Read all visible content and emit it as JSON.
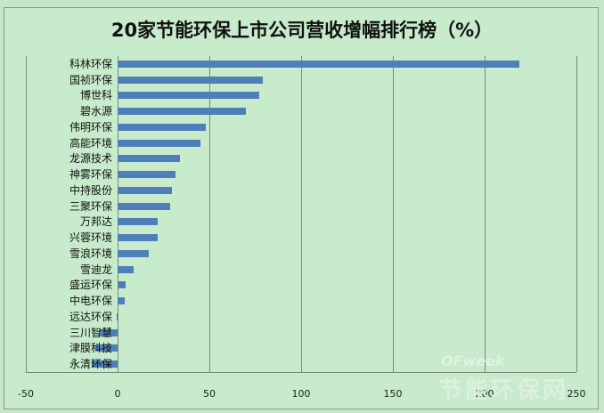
{
  "title": "20家节能环保上市公司营收增幅排行榜（%）",
  "watermark": {
    "brand": "OFweek",
    "site": "节能环保网"
  },
  "chart_data": {
    "type": "bar",
    "orientation": "horizontal",
    "title": "20家节能环保上市公司营收增幅排行榜（%）",
    "xlabel": "",
    "ylabel": "",
    "xlim": [
      -50,
      250
    ],
    "xticks": [
      -50,
      0,
      50,
      100,
      150,
      200,
      250
    ],
    "grid": true,
    "legend": null,
    "bar_color": "#4f7fba",
    "categories": [
      "科林环保",
      "国祯环保",
      "博世科",
      "碧水源",
      "伟明环保",
      "高能环境",
      "龙源技术",
      "神雾环保",
      "中持股份",
      "三聚环保",
      "万邦达",
      "兴蓉环境",
      "雪浪环境",
      "雪迪龙",
      "盛运环保",
      "中电环保",
      "远达环保",
      "三川智慧",
      "津膜科技",
      "永清环保"
    ],
    "values": [
      219,
      79,
      77,
      70,
      48,
      45,
      34,
      31.5,
      29.5,
      28.5,
      22,
      22,
      17,
      8.5,
      4.5,
      4,
      -0.5,
      -10,
      -12,
      -14
    ]
  }
}
